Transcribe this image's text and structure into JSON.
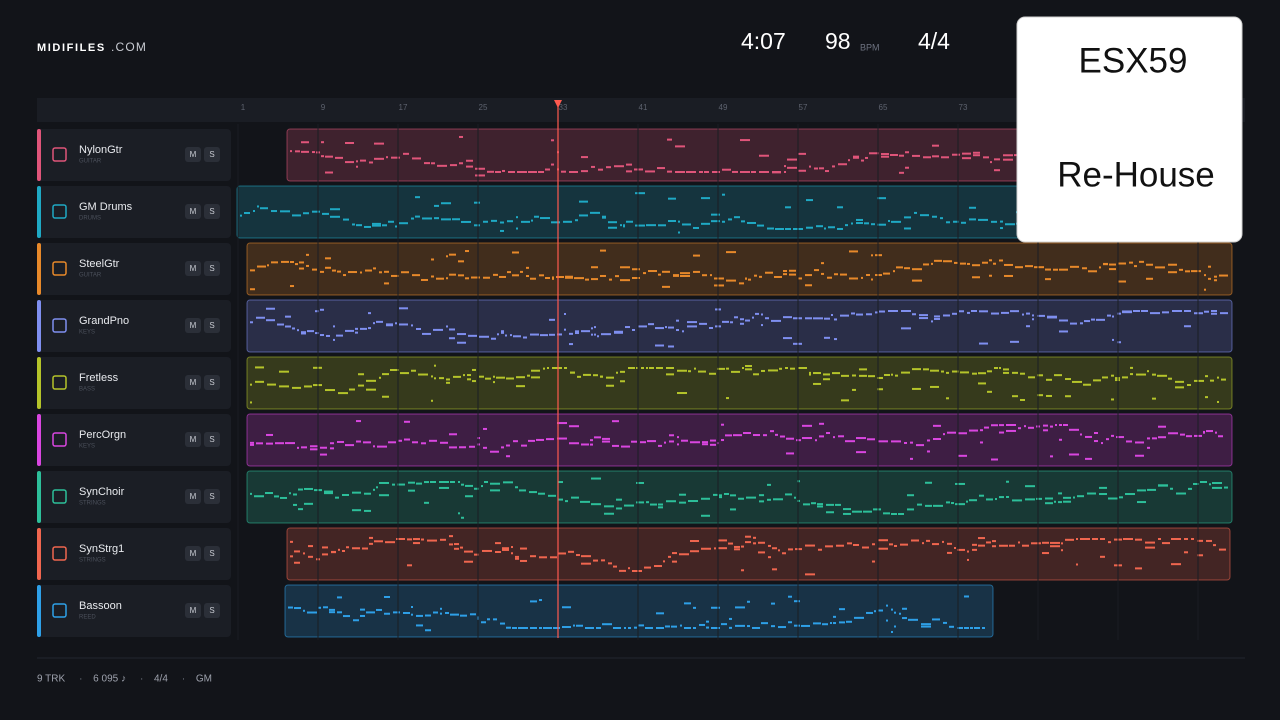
{
  "header": {
    "brand": "MIDIFILES",
    "brand_suffix": ".COM",
    "duration": "4:07",
    "tempo": "98",
    "tempo_unit": "BPM",
    "meter": "4/4"
  },
  "overlay": {
    "title": "ESX59",
    "subtitle": "Re-House"
  },
  "ruler": [
    "1",
    "9",
    "17",
    "25",
    "33",
    "41",
    "49",
    "57",
    "65",
    "73"
  ],
  "tracks": [
    {
      "name": "NylonGtr",
      "category": "GUITAR",
      "mute": "M",
      "solo": "S"
    },
    {
      "name": "GM Drums",
      "category": "DRUMS",
      "mute": "M",
      "solo": "S"
    },
    {
      "name": "SteelGtr",
      "category": "GUITAR",
      "mute": "M",
      "solo": "S"
    },
    {
      "name": "GrandPno",
      "category": "KEYS",
      "mute": "M",
      "solo": "S"
    },
    {
      "name": "Fretless",
      "category": "BASS",
      "mute": "M",
      "solo": "S"
    },
    {
      "name": "PercOrgn",
      "category": "KEYS",
      "mute": "M",
      "solo": "S"
    },
    {
      "name": "SynChoir",
      "category": "STRINGS",
      "mute": "M",
      "solo": "S"
    },
    {
      "name": "SynStrg1",
      "category": "STRINGS",
      "mute": "M",
      "solo": "S"
    },
    {
      "name": "Bassoon",
      "category": "REED",
      "mute": "M",
      "solo": "S"
    }
  ],
  "footer": {
    "items": [
      "9 TRK",
      "6 095 ♪",
      "4/4",
      "GM"
    ],
    "separator": "·"
  }
}
